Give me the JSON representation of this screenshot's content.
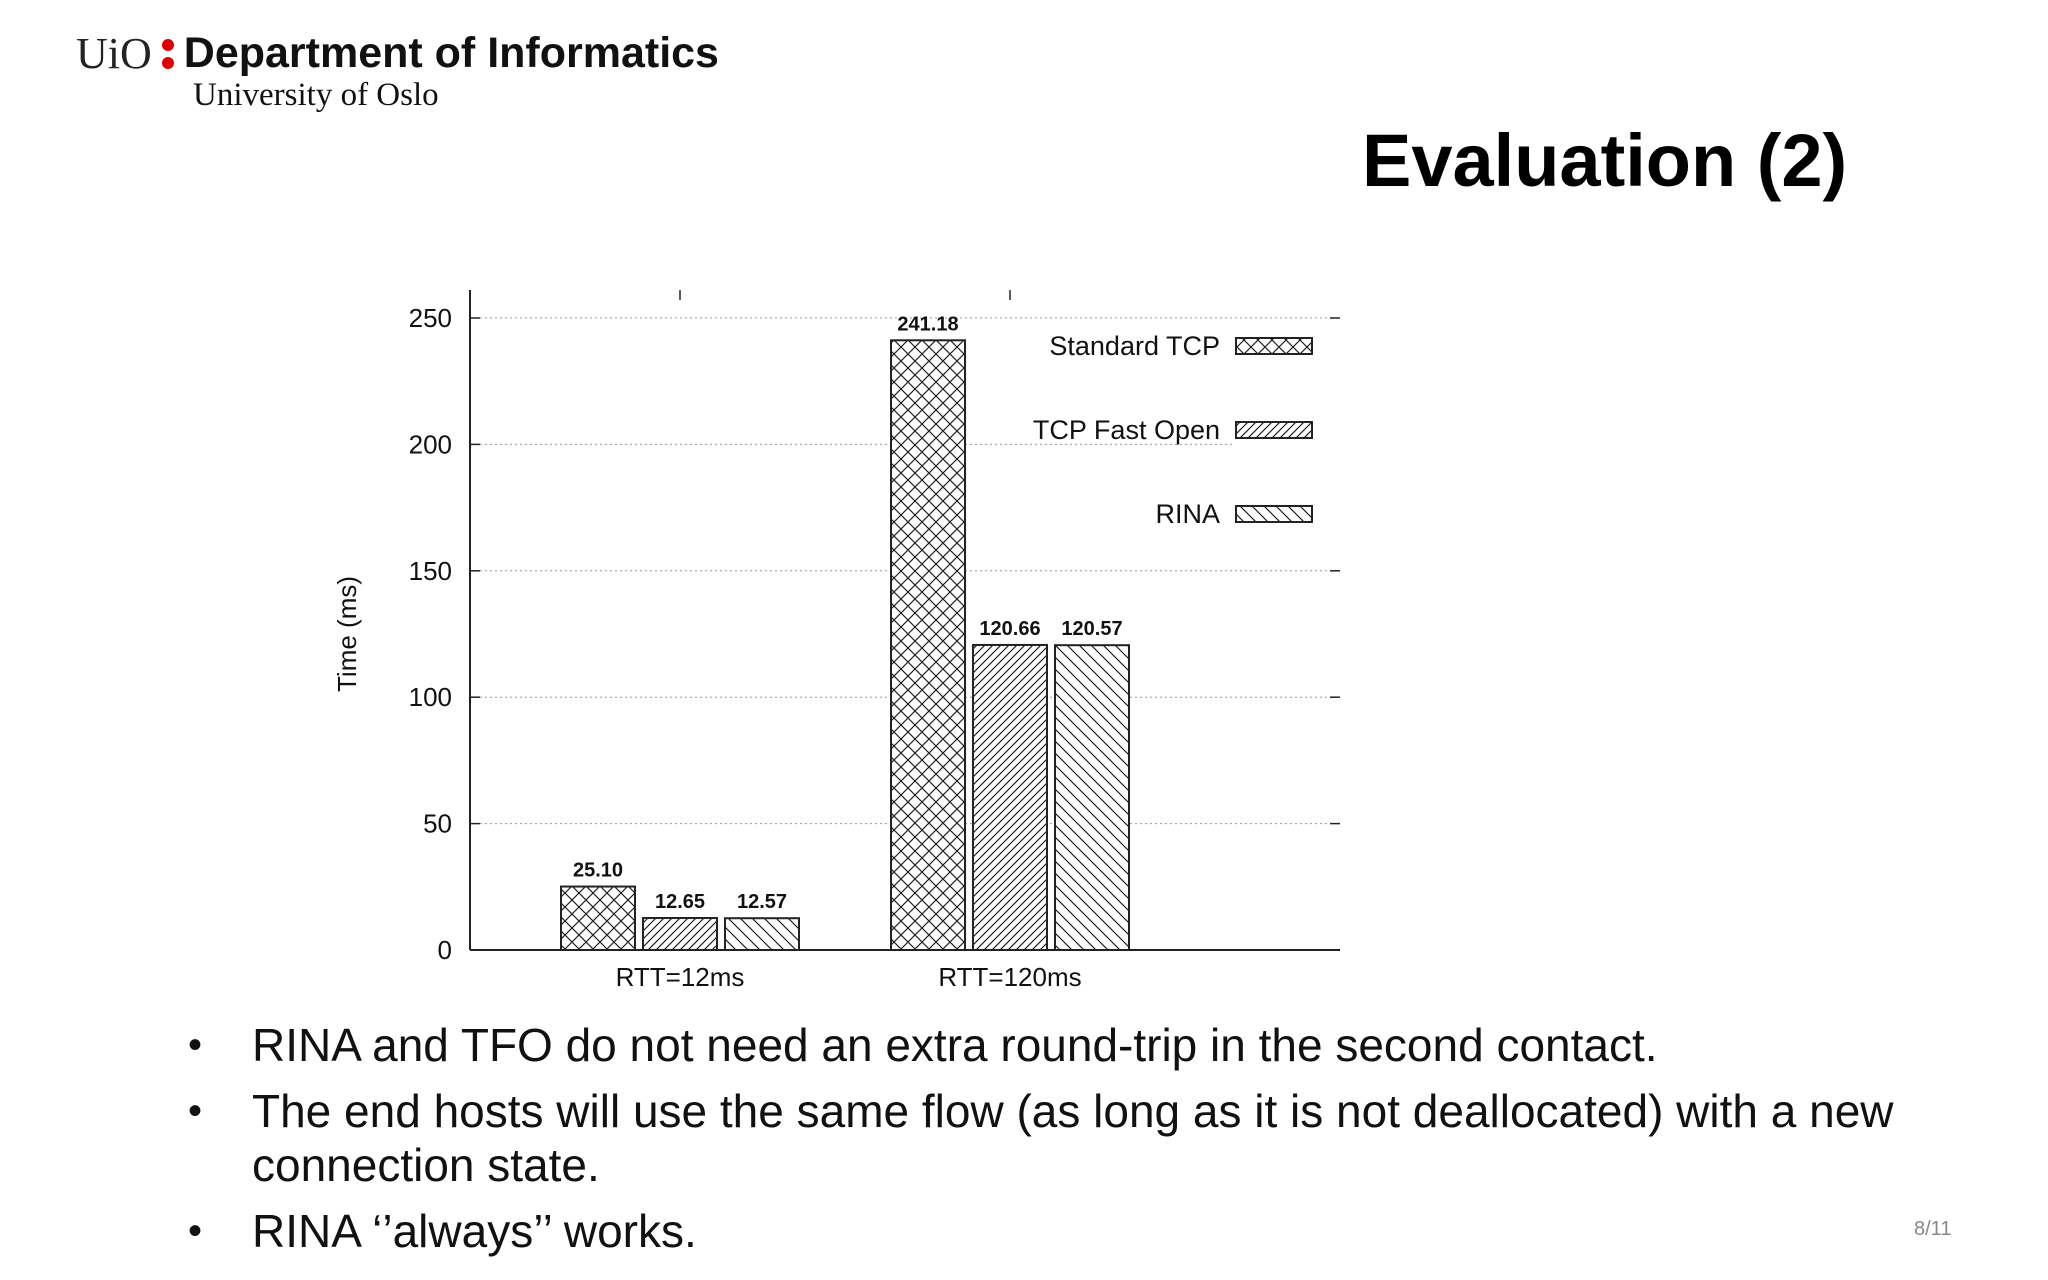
{
  "header": {
    "logo_text": "UiO",
    "department": "Department of Informatics",
    "university": "University of Oslo"
  },
  "slide_title": "Evaluation (2)",
  "chart_data": {
    "type": "bar",
    "title": "",
    "xlabel": "",
    "ylabel": "Time (ms)",
    "ylim": [
      0,
      260
    ],
    "yticks": [
      "0",
      "50",
      "100",
      "150",
      "200",
      "250"
    ],
    "grid": true,
    "legend_position": "top-right",
    "categories": [
      "RTT=12ms",
      "RTT=120ms"
    ],
    "series": [
      {
        "name": "Standard TCP",
        "pattern": "crosshatch",
        "values": [
          25.1,
          241.18
        ],
        "labels": [
          "25.10",
          "241.18"
        ]
      },
      {
        "name": "TCP Fast Open",
        "pattern": "dense-diagonal",
        "values": [
          12.65,
          120.66
        ],
        "labels": [
          "12.65",
          "120.66"
        ]
      },
      {
        "name": "RINA",
        "pattern": "backslash",
        "values": [
          12.57,
          120.57
        ],
        "labels": [
          "12.57",
          "120.57"
        ]
      }
    ]
  },
  "bullets": [
    "RINA and TFO do not need an extra round-trip in the second contact.",
    "The end hosts will use the same flow (as long as it is not deallocated) with a new connection state.",
    "RINA ‘’always’’ works."
  ],
  "page_number": "8/11"
}
